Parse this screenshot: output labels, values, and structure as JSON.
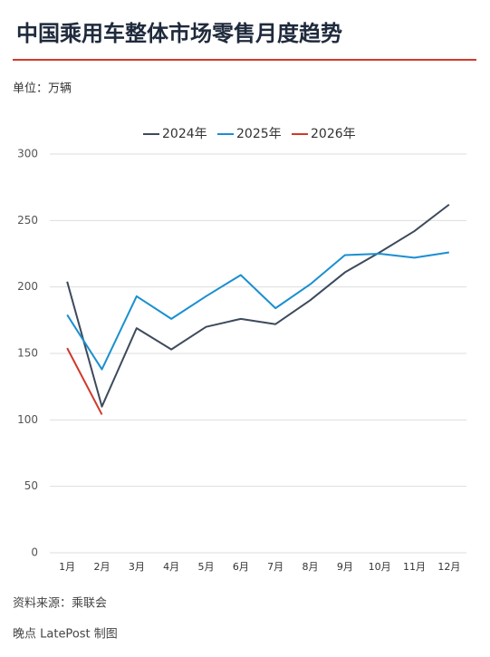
{
  "chart_data": {
    "type": "line",
    "title": "中国乘用车整体市场零售月度趋势",
    "subtitle": "单位：万辆",
    "source": "资料来源：乘联会",
    "footer": "晚点 LatePost 制图",
    "categories": [
      "1月",
      "2月",
      "3月",
      "4月",
      "5月",
      "6月",
      "7月",
      "8月",
      "9月",
      "10月",
      "11月",
      "12月"
    ],
    "series": [
      {
        "name": "2024年",
        "color": "#3d4a5c",
        "values": [
          204,
          110,
          169,
          153,
          170,
          176,
          172,
          190,
          211,
          226,
          242,
          262
        ]
      },
      {
        "name": "2025年",
        "color": "#1a8fd1",
        "values": [
          179,
          138,
          193,
          176,
          193,
          209,
          184,
          202,
          224,
          225,
          222,
          226
        ]
      },
      {
        "name": "2026年",
        "color": "#d0392b",
        "values": [
          154,
          104,
          null,
          null,
          null,
          null,
          null,
          null,
          null,
          null,
          null,
          null
        ]
      }
    ],
    "ylim": [
      0,
      300
    ],
    "yticks": [
      0,
      50,
      100,
      150,
      200,
      250,
      300
    ],
    "grid": true,
    "legend": "top"
  }
}
